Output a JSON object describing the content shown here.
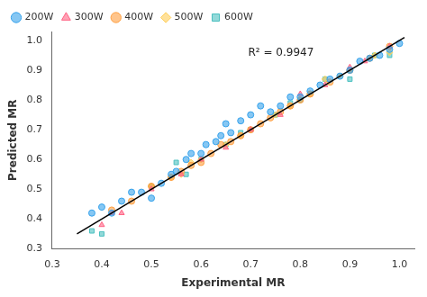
{
  "chart_data": {
    "type": "scatter",
    "xlabel": "Experimental MR",
    "ylabel": "Predicted MR",
    "xlim": [
      0.3,
      1.03
    ],
    "ylim": [
      0.3,
      1.03
    ],
    "xticks": [
      0.3,
      0.4,
      0.5,
      0.6,
      0.7,
      0.8,
      0.9,
      {
        "value": 1.0,
        "label": "1.0"
      }
    ],
    "yticks": [
      0.3,
      0.4,
      0.5,
      0.6,
      0.7,
      0.8,
      0.9,
      {
        "value": 1.0,
        "label": "1.0"
      }
    ],
    "grid": false,
    "legend": "upper left",
    "annotations": [
      {
        "text": "R² = 0.9947",
        "x": 0.695,
        "y": 0.975
      }
    ],
    "series": [
      {
        "type": "line",
        "color": "#000000",
        "line_style": "solid",
        "x": [
          0.35,
          1.01
        ],
        "values": [
          0.35,
          1.01
        ]
      },
      {
        "name": "200W",
        "marker": "circle",
        "x": [
          0.38,
          0.4,
          0.42,
          0.44,
          0.46,
          0.48,
          0.5,
          0.52,
          0.54,
          0.55,
          0.57,
          0.58,
          0.6,
          0.61,
          0.63,
          0.64,
          0.65,
          0.66,
          0.68,
          0.7,
          0.72,
          0.74,
          0.76,
          0.78,
          0.8,
          0.82,
          0.84,
          0.86,
          0.88,
          0.9,
          0.92,
          0.94,
          0.96,
          0.98,
          1.0
        ],
        "values": [
          0.42,
          0.44,
          0.42,
          0.46,
          0.49,
          0.49,
          0.47,
          0.52,
          0.55,
          0.56,
          0.6,
          0.62,
          0.62,
          0.65,
          0.66,
          0.68,
          0.72,
          0.69,
          0.73,
          0.75,
          0.78,
          0.76,
          0.78,
          0.81,
          0.81,
          0.83,
          0.85,
          0.87,
          0.88,
          0.9,
          0.93,
          0.94,
          0.95,
          0.97,
          0.99
        ]
      },
      {
        "name": "300W",
        "marker": "triangle",
        "x": [
          0.4,
          0.42,
          0.44,
          0.5,
          0.56,
          0.6,
          0.65,
          0.7,
          0.76,
          0.8,
          0.85,
          0.9,
          0.93,
          0.98
        ],
        "values": [
          0.38,
          0.42,
          0.42,
          0.5,
          0.55,
          0.6,
          0.64,
          0.7,
          0.75,
          0.82,
          0.85,
          0.91,
          0.93,
          0.98
        ]
      },
      {
        "name": "400W",
        "marker": "circle",
        "x": [
          0.42,
          0.46,
          0.5,
          0.54,
          0.56,
          0.58,
          0.6,
          0.62,
          0.64,
          0.66,
          0.68,
          0.7,
          0.72,
          0.74,
          0.76,
          0.78,
          0.8,
          0.82,
          0.86,
          0.9,
          0.94,
          0.98
        ],
        "values": [
          0.43,
          0.46,
          0.51,
          0.54,
          0.56,
          0.58,
          0.59,
          0.62,
          0.65,
          0.66,
          0.68,
          0.7,
          0.72,
          0.74,
          0.76,
          0.78,
          0.8,
          0.82,
          0.86,
          0.9,
          0.94,
          0.98
        ]
      },
      {
        "name": "500W",
        "marker": "diamond",
        "x": [
          0.5,
          0.54,
          0.56,
          0.58,
          0.6,
          0.65,
          0.68,
          0.7,
          0.75,
          0.78,
          0.82,
          0.85,
          0.88,
          0.9,
          0.95,
          0.98
        ],
        "values": [
          0.51,
          0.54,
          0.55,
          0.59,
          0.6,
          0.65,
          0.68,
          0.7,
          0.75,
          0.78,
          0.82,
          0.87,
          0.88,
          0.9,
          0.95,
          0.96
        ]
      },
      {
        "name": "600W",
        "marker": "square",
        "x": [
          0.38,
          0.4,
          0.5,
          0.55,
          0.57,
          0.6,
          0.65,
          0.68,
          0.7,
          0.75,
          0.78,
          0.8,
          0.85,
          0.9,
          0.95,
          0.98
        ],
        "values": [
          0.36,
          0.35,
          0.51,
          0.59,
          0.55,
          0.6,
          0.65,
          0.69,
          0.7,
          0.75,
          0.79,
          0.8,
          0.87,
          0.87,
          0.95,
          0.95
        ]
      }
    ]
  }
}
